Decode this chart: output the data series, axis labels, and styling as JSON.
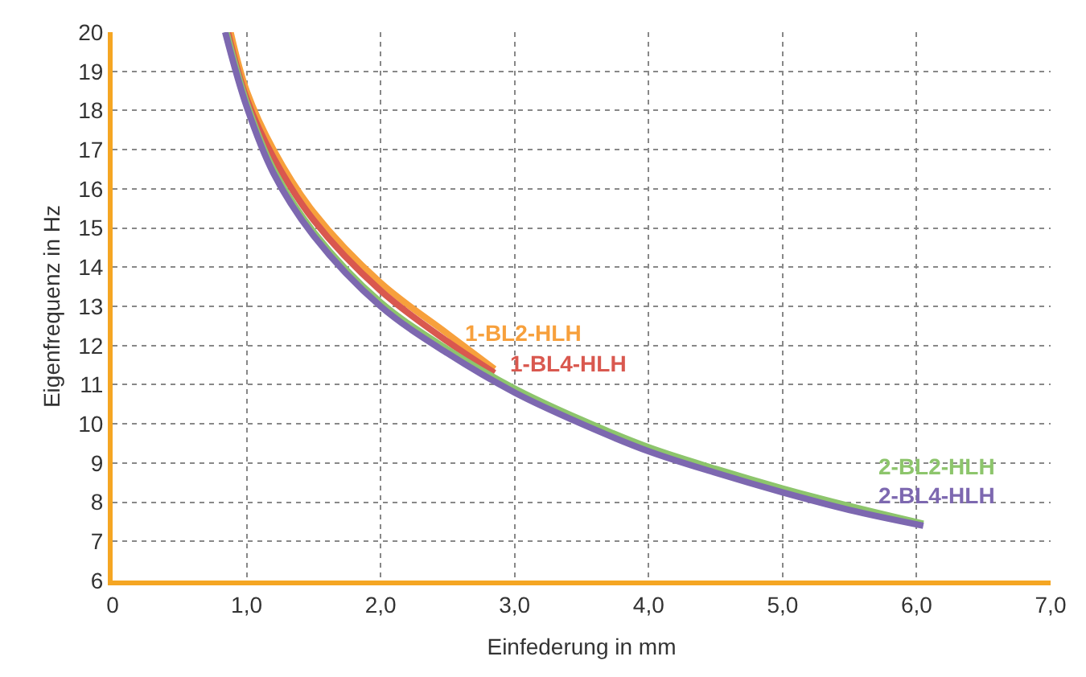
{
  "chart_data": {
    "type": "line",
    "xlabel": "Einfederung in mm",
    "ylabel": "Eigenfrequenz in Hz",
    "xlim": [
      0,
      7
    ],
    "ylim": [
      6,
      20
    ],
    "xticks": [
      0,
      {
        "value": 1,
        "label": "1,0"
      },
      {
        "value": 2,
        "label": "2,0"
      },
      {
        "value": 3,
        "label": "3,0"
      },
      {
        "value": 4,
        "label": "4,0"
      },
      {
        "value": 5,
        "label": "5,0"
      },
      {
        "value": 6,
        "label": "6,0"
      },
      {
        "value": 7,
        "label": "7,0"
      }
    ],
    "yticks": [
      6,
      7,
      8,
      9,
      10,
      11,
      12,
      13,
      14,
      15,
      16,
      17,
      18,
      19,
      20
    ],
    "grid": true,
    "legend": false,
    "marker": "none",
    "line_style": "solid",
    "series": [
      {
        "name": "1-BL2-HLH",
        "color": "#f7a03c",
        "x": [
          0.88,
          1.0,
          1.2,
          1.5,
          2.0,
          2.5,
          2.85
        ],
        "values": [
          20,
          18.5,
          17.0,
          15.4,
          13.6,
          12.3,
          11.4
        ]
      },
      {
        "name": "1-BL4-HLH",
        "color": "#d9584f",
        "x": [
          0.86,
          1.0,
          1.2,
          1.5,
          2.0,
          2.5,
          2.85
        ],
        "values": [
          20,
          18.3,
          16.8,
          15.2,
          13.4,
          12.1,
          11.3
        ]
      },
      {
        "name": "2-BL2-HLH",
        "color": "#8dc56c",
        "x": [
          0.85,
          1.0,
          1.2,
          1.5,
          2.0,
          2.5,
          3.0,
          3.5,
          4.0,
          4.5,
          5.0,
          5.5,
          6.05
        ],
        "values": [
          20,
          18.2,
          16.5,
          14.9,
          13.1,
          11.9,
          10.9,
          10.1,
          9.4,
          8.85,
          8.35,
          7.9,
          7.45
        ]
      },
      {
        "name": "2-BL4-HLH",
        "color": "#7d68b0",
        "x": [
          0.84,
          1.0,
          1.2,
          1.5,
          2.0,
          2.5,
          3.0,
          3.5,
          4.0,
          4.5,
          5.0,
          5.5,
          6.05
        ],
        "values": [
          20,
          18.1,
          16.4,
          14.8,
          13.0,
          11.8,
          10.8,
          10.0,
          9.3,
          8.75,
          8.25,
          7.8,
          7.4
        ]
      }
    ]
  }
}
